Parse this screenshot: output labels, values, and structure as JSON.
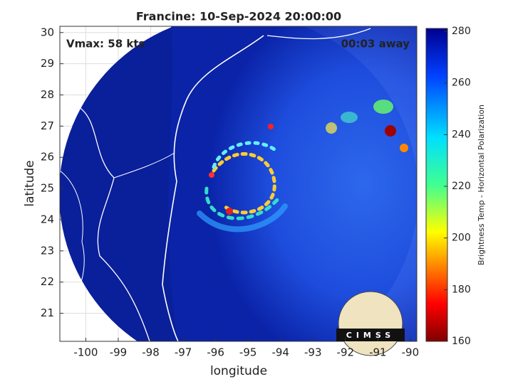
{
  "chart_data": {
    "type": "map",
    "title": "Francine: 10-Sep-2024 20:00:00",
    "annotations": [
      "Vmax: 58 kts",
      "00:03 away"
    ],
    "xlabel": "longitude",
    "ylabel": "latitude",
    "xlim": [
      -100.8,
      -89.8
    ],
    "ylim": [
      20.1,
      30.2
    ],
    "xticks": [
      -100,
      -99,
      -98,
      -97,
      -96,
      -95,
      -94,
      -93,
      -92,
      -91,
      -90
    ],
    "yticks": [
      21,
      22,
      23,
      24,
      25,
      26,
      27,
      28,
      29,
      30
    ],
    "grid": true,
    "colorbar": {
      "label": "Brightness Temp - Horizontal Polarization",
      "clim": [
        160,
        280
      ],
      "ticks": [
        160,
        180,
        200,
        220,
        240,
        260,
        280
      ]
    },
    "logo": "CIMSS"
  }
}
